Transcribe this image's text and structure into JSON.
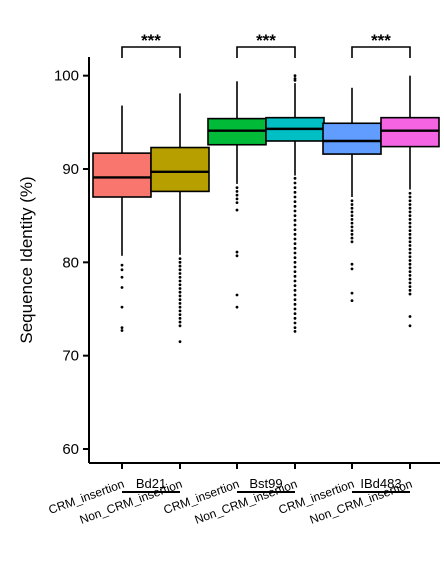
{
  "chart_data": {
    "type": "boxplot",
    "ylabel": "Sequence Identity (%)",
    "ylim": [
      58.5,
      102
    ],
    "yticks": [
      60,
      70,
      80,
      90,
      100
    ],
    "groups": [
      {
        "name": "Bd21",
        "significance": "***",
        "boxes": [
          {
            "category": "CRM_insertion",
            "color": "#f8766d",
            "whisker_low": 80.7,
            "q1": 87.0,
            "median": 89.1,
            "q3": 91.7,
            "whisker_high": 96.8,
            "outliers": [
              79.7,
              79.2,
              78.4,
              77.3,
              75.2,
              73.0,
              72.7
            ]
          },
          {
            "category": "Non_CRM_insertion",
            "color": "#b79f00",
            "whisker_low": 80.8,
            "q1": 87.6,
            "median": 89.7,
            "q3": 92.3,
            "whisker_high": 98.1,
            "outliers": [
              80.4,
              80.0,
              79.6,
              79.2,
              78.8,
              78.4,
              78.0,
              77.6,
              77.2,
              76.8,
              76.4,
              76.0,
              75.6,
              75.2,
              74.8,
              74.4,
              74.0,
              73.6,
              73.2,
              71.5
            ]
          }
        ]
      },
      {
        "name": "Bst99",
        "significance": "***",
        "boxes": [
          {
            "category": "CRM_insertion",
            "color": "#00ba38",
            "whisker_low": 88.4,
            "q1": 92.6,
            "median": 94.1,
            "q3": 95.4,
            "whisker_high": 99.4,
            "outliers": [
              88.0,
              87.6,
              87.2,
              86.8,
              86.4,
              85.6,
              81.1,
              80.7,
              76.5,
              75.2
            ]
          },
          {
            "category": "Non_CRM_insertion",
            "color": "#00bfc4",
            "whisker_low": 89.3,
            "q1": 93.0,
            "median": 94.3,
            "q3": 95.5,
            "whisker_high": 99.2,
            "outliers": [
              100.0,
              99.7,
              99.5,
              89.0,
              88.5,
              88.0,
              87.5,
              87.0,
              86.5,
              86.0,
              85.5,
              85.0,
              84.5,
              84.0,
              83.5,
              83.0,
              82.5,
              82.0,
              81.5,
              81.0,
              80.5,
              80.0,
              79.5,
              79.0,
              78.5,
              78.0,
              77.5,
              77.0,
              76.5,
              76.0,
              75.5,
              75.0,
              74.5,
              74.0,
              73.5,
              73.0,
              72.6
            ]
          }
        ]
      },
      {
        "name": "IBd483",
        "significance": "***",
        "boxes": [
          {
            "category": "CRM_insertion",
            "color": "#619cff",
            "whisker_low": 87.0,
            "q1": 91.6,
            "median": 93.0,
            "q3": 94.9,
            "whisker_high": 98.7,
            "outliers": [
              86.6,
              86.2,
              85.8,
              85.4,
              85.0,
              84.6,
              84.2,
              83.8,
              83.4,
              83.0,
              82.6,
              82.2,
              79.8,
              79.3,
              76.7,
              75.9
            ]
          },
          {
            "category": "Non_CRM_insertion",
            "color": "#f564e3",
            "whisker_low": 87.8,
            "q1": 92.4,
            "median": 94.1,
            "q3": 95.5,
            "whisker_high": 100.0,
            "outliers": [
              87.4,
              87.0,
              86.6,
              86.2,
              85.8,
              85.4,
              85.0,
              84.6,
              84.2,
              83.8,
              83.4,
              83.0,
              82.6,
              82.2,
              81.8,
              81.4,
              81.0,
              80.6,
              80.2,
              79.8,
              79.4,
              79.0,
              78.6,
              78.2,
              77.8,
              77.4,
              77.0,
              76.6,
              74.2,
              73.2
            ]
          }
        ]
      }
    ]
  }
}
